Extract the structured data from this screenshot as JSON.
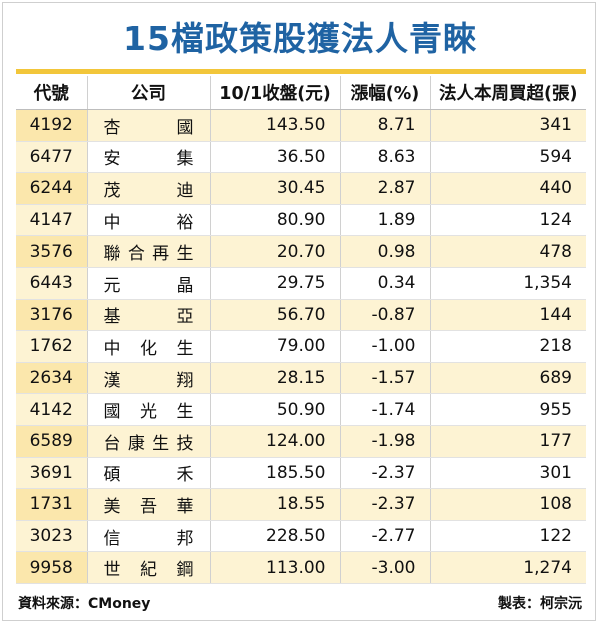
{
  "title": "15檔政策股獲法人青睞",
  "headers": [
    "代號",
    "公司",
    "10/1收盤(元)",
    "漲幅(%)",
    "法人本周買超(張)"
  ],
  "rows": [
    {
      "code": "4192",
      "name": "杏國",
      "close": "143.50",
      "change": "8.71",
      "buy": "341"
    },
    {
      "code": "6477",
      "name": "安集",
      "close": "36.50",
      "change": "8.63",
      "buy": "594"
    },
    {
      "code": "6244",
      "name": "茂迪",
      "close": "30.45",
      "change": "2.87",
      "buy": "440"
    },
    {
      "code": "4147",
      "name": "中裕",
      "close": "80.90",
      "change": "1.89",
      "buy": "124"
    },
    {
      "code": "3576",
      "name": "聯合再生",
      "close": "20.70",
      "change": "0.98",
      "buy": "478"
    },
    {
      "code": "6443",
      "name": "元晶",
      "close": "29.75",
      "change": "0.34",
      "buy": "1,354"
    },
    {
      "code": "3176",
      "name": "基亞",
      "close": "56.70",
      "change": "-0.87",
      "buy": "144"
    },
    {
      "code": "1762",
      "name": "中化生",
      "close": "79.00",
      "change": "-1.00",
      "buy": "218"
    },
    {
      "code": "2634",
      "name": "漢翔",
      "close": "28.15",
      "change": "-1.57",
      "buy": "689"
    },
    {
      "code": "4142",
      "name": "國光生",
      "close": "50.90",
      "change": "-1.74",
      "buy": "955"
    },
    {
      "code": "6589",
      "name": "台康生技",
      "close": "124.00",
      "change": "-1.98",
      "buy": "177"
    },
    {
      "code": "3691",
      "name": "碩禾",
      "close": "185.50",
      "change": "-2.37",
      "buy": "301"
    },
    {
      "code": "1731",
      "name": "美吾華",
      "close": "18.55",
      "change": "-2.37",
      "buy": "108"
    },
    {
      "code": "3023",
      "name": "信邦",
      "close": "228.50",
      "change": "-2.77",
      "buy": "122"
    },
    {
      "code": "9958",
      "name": "世紀鋼",
      "close": "113.00",
      "change": "-3.00",
      "buy": "1,274"
    }
  ],
  "footer": {
    "source": "資料來源：CMoney",
    "author": "製表：柯宗沅"
  },
  "colors": {
    "title": "#1f63a3",
    "rule": "#f2c63a",
    "row_shade": "#fdf3d3",
    "code_shade": "#fbe7ac"
  }
}
